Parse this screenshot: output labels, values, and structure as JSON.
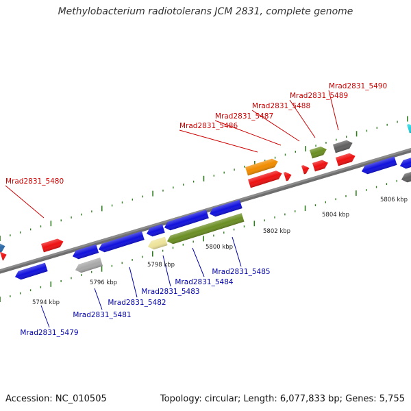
{
  "title": "Methylobacterium radiotolerans JCM 2831, complete genome",
  "footer": {
    "accession": "Accession: NC_010505",
    "summary": "Topology: circular; Length: 6,077,833 bp; Genes: 5,755"
  },
  "colors": {
    "backbone": "#8c8c8c",
    "tick": "#2e7d1e",
    "label_forward": "#cc0000",
    "label_reverse": "#0000aa",
    "callout_forward": "#cc0000",
    "callout_reverse": "#0000aa"
  },
  "scale": {
    "ticks": [
      {
        "label": "5794 kbp"
      },
      {
        "label": "5796 kbp"
      },
      {
        "label": "5798 kbp"
      },
      {
        "label": "5800 kbp"
      },
      {
        "label": "5802 kbp"
      },
      {
        "label": "5804 kbp"
      },
      {
        "label": "5806 kbp"
      }
    ]
  },
  "genes_forward": [
    {
      "label": "Mrad2831_5480",
      "color": "#ee1111"
    },
    {
      "label": "Mrad2831_5486",
      "color": "#ee1111"
    },
    {
      "label": "Mrad2831_5487",
      "color": "#ee1111"
    },
    {
      "label": "Mrad2831_5488",
      "color": "#ee1111"
    },
    {
      "label": "Mrad2831_5489",
      "color": "#6b8e23"
    },
    {
      "label": "Mrad2831_5490",
      "color": "#606060"
    }
  ],
  "genes_reverse": [
    {
      "label": "Mrad2831_5479",
      "color": "#1111dd"
    },
    {
      "label": "Mrad2831_5481",
      "color": "#a8a8a8"
    },
    {
      "label": "Mrad2831_5482",
      "color": "#1111dd"
    },
    {
      "label": "Mrad2831_5483",
      "color": "#eee39a"
    },
    {
      "label": "Mrad2831_5484",
      "color": "#6b8e23"
    },
    {
      "label": "Mrad2831_5485",
      "color": "#1111dd"
    }
  ]
}
